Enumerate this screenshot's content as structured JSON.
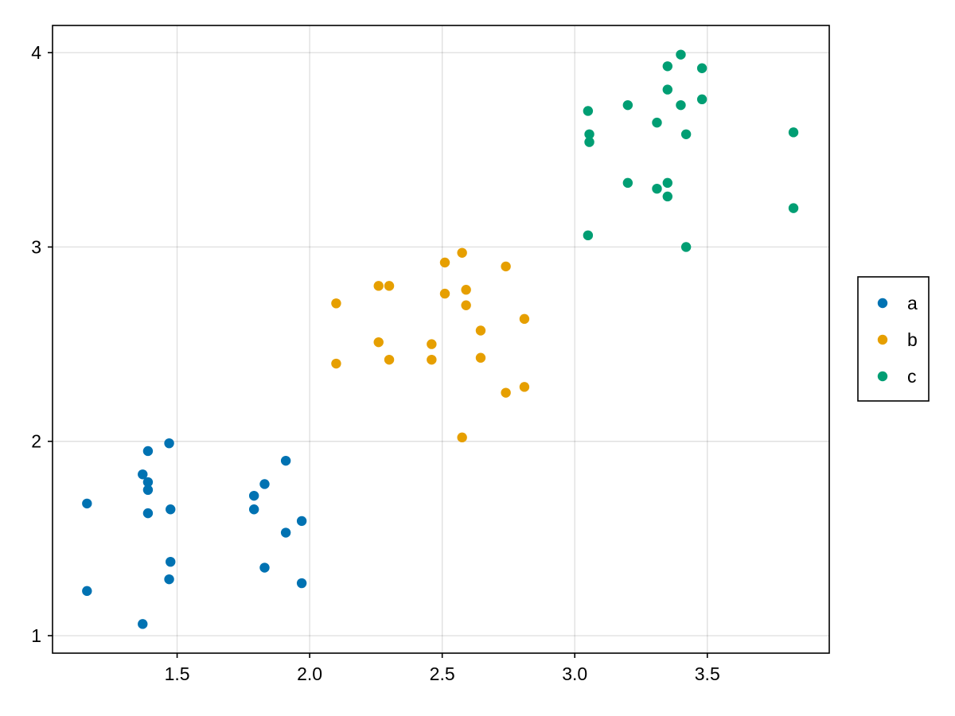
{
  "chart_data": {
    "type": "scatter",
    "title": "",
    "xlabel": "",
    "ylabel": "",
    "xlim": [
      1.03,
      3.96
    ],
    "ylim": [
      0.91,
      4.14
    ],
    "xticks": [
      1.5,
      2.0,
      2.5,
      3.0,
      3.5
    ],
    "xtick_labels": [
      "1.5",
      "2.0",
      "2.5",
      "3.0",
      "3.5"
    ],
    "yticks": [
      1,
      2,
      3,
      4
    ],
    "ytick_labels": [
      "1",
      "2",
      "3",
      "4"
    ],
    "grid": true,
    "legend_position": "right",
    "series": [
      {
        "name": "a",
        "color": "#0072b2",
        "points": [
          [
            1.16,
            1.68
          ],
          [
            1.16,
            1.23
          ],
          [
            1.37,
            1.83
          ],
          [
            1.37,
            1.06
          ],
          [
            1.39,
            1.95
          ],
          [
            1.39,
            1.79
          ],
          [
            1.39,
            1.75
          ],
          [
            1.39,
            1.63
          ],
          [
            1.47,
            1.99
          ],
          [
            1.475,
            1.65
          ],
          [
            1.475,
            1.38
          ],
          [
            1.47,
            1.29
          ],
          [
            1.79,
            1.72
          ],
          [
            1.79,
            1.65
          ],
          [
            1.83,
            1.78
          ],
          [
            1.83,
            1.35
          ],
          [
            1.91,
            1.9
          ],
          [
            1.91,
            1.53
          ],
          [
            1.97,
            1.59
          ],
          [
            1.97,
            1.27
          ]
        ]
      },
      {
        "name": "b",
        "color": "#e69f00",
        "points": [
          [
            2.1,
            2.71
          ],
          [
            2.1,
            2.4
          ],
          [
            2.26,
            2.8
          ],
          [
            2.26,
            2.51
          ],
          [
            2.3,
            2.8
          ],
          [
            2.3,
            2.42
          ],
          [
            2.46,
            2.5
          ],
          [
            2.46,
            2.42
          ],
          [
            2.51,
            2.92
          ],
          [
            2.51,
            2.76
          ],
          [
            2.575,
            2.97
          ],
          [
            2.575,
            2.02
          ],
          [
            2.59,
            2.78
          ],
          [
            2.59,
            2.7
          ],
          [
            2.645,
            2.57
          ],
          [
            2.645,
            2.43
          ],
          [
            2.74,
            2.9
          ],
          [
            2.74,
            2.25
          ],
          [
            2.81,
            2.63
          ],
          [
            2.81,
            2.28
          ]
        ]
      },
      {
        "name": "c",
        "color": "#009e73",
        "points": [
          [
            3.05,
            3.7
          ],
          [
            3.05,
            3.06
          ],
          [
            3.055,
            3.58
          ],
          [
            3.055,
            3.54
          ],
          [
            3.2,
            3.73
          ],
          [
            3.2,
            3.33
          ],
          [
            3.31,
            3.64
          ],
          [
            3.31,
            3.3
          ],
          [
            3.35,
            3.93
          ],
          [
            3.35,
            3.81
          ],
          [
            3.35,
            3.33
          ],
          [
            3.35,
            3.26
          ],
          [
            3.4,
            3.99
          ],
          [
            3.4,
            3.73
          ],
          [
            3.42,
            3.58
          ],
          [
            3.42,
            3.0
          ],
          [
            3.48,
            3.92
          ],
          [
            3.48,
            3.76
          ],
          [
            3.825,
            3.59
          ],
          [
            3.825,
            3.2
          ]
        ]
      }
    ]
  }
}
